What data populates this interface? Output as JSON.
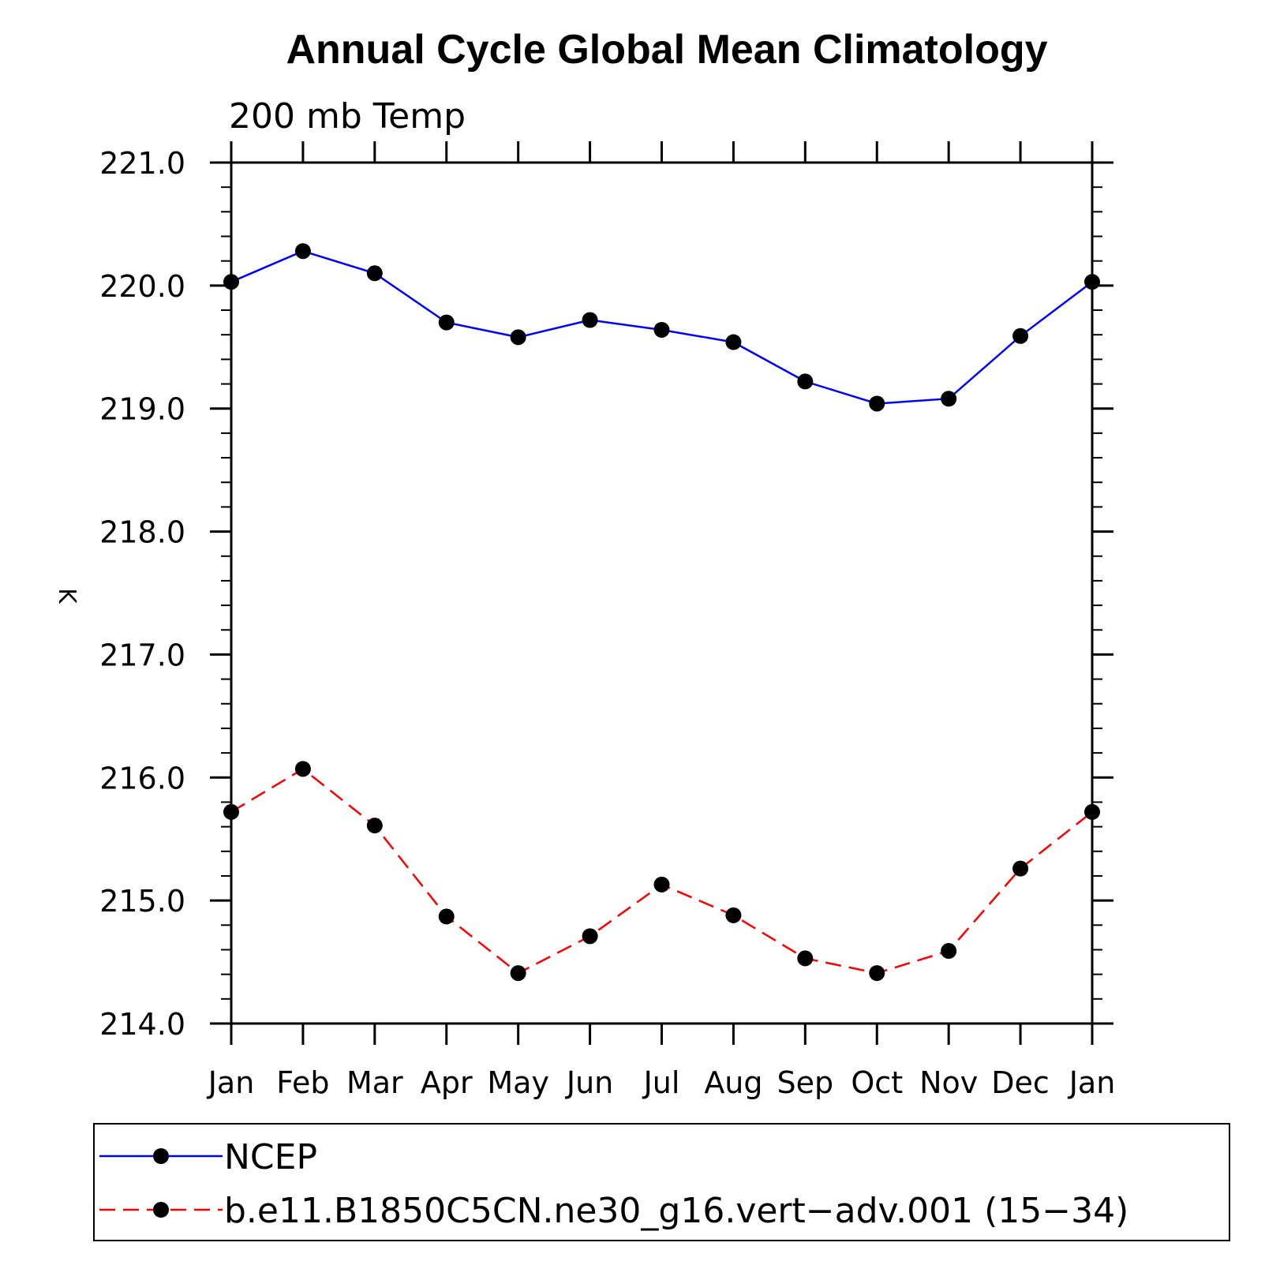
{
  "chart_data": {
    "type": "line",
    "title": "Annual Cycle Global Mean Climatology",
    "subtitle": "200 mb Temp",
    "xlabel": "",
    "ylabel": "K",
    "ylim": [
      214.0,
      221.0
    ],
    "y_ticks": [
      "214.0",
      "215.0",
      "216.0",
      "217.0",
      "218.0",
      "219.0",
      "220.0",
      "221.0"
    ],
    "categories": [
      "Jan",
      "Feb",
      "Mar",
      "Apr",
      "May",
      "Jun",
      "Jul",
      "Aug",
      "Sep",
      "Oct",
      "Nov",
      "Dec",
      "Jan"
    ],
    "series": [
      {
        "name": "NCEP",
        "color": "#0000ff",
        "line_style": "solid",
        "marker": "filled-circle",
        "values": [
          220.03,
          220.28,
          220.1,
          219.7,
          219.58,
          219.72,
          219.64,
          219.54,
          219.22,
          219.04,
          219.08,
          219.59,
          220.03
        ]
      },
      {
        "name": "b.e11.B1850C5CN.ne30_g16.vert−adv.001 (15−34)",
        "color": "#ff0000",
        "line_style": "dashed",
        "marker": "filled-circle",
        "values": [
          215.72,
          216.07,
          215.61,
          214.87,
          214.41,
          214.71,
          215.13,
          214.88,
          214.53,
          214.41,
          214.59,
          215.26,
          215.72
        ]
      }
    ],
    "legend_position": "bottom",
    "grid": false
  }
}
